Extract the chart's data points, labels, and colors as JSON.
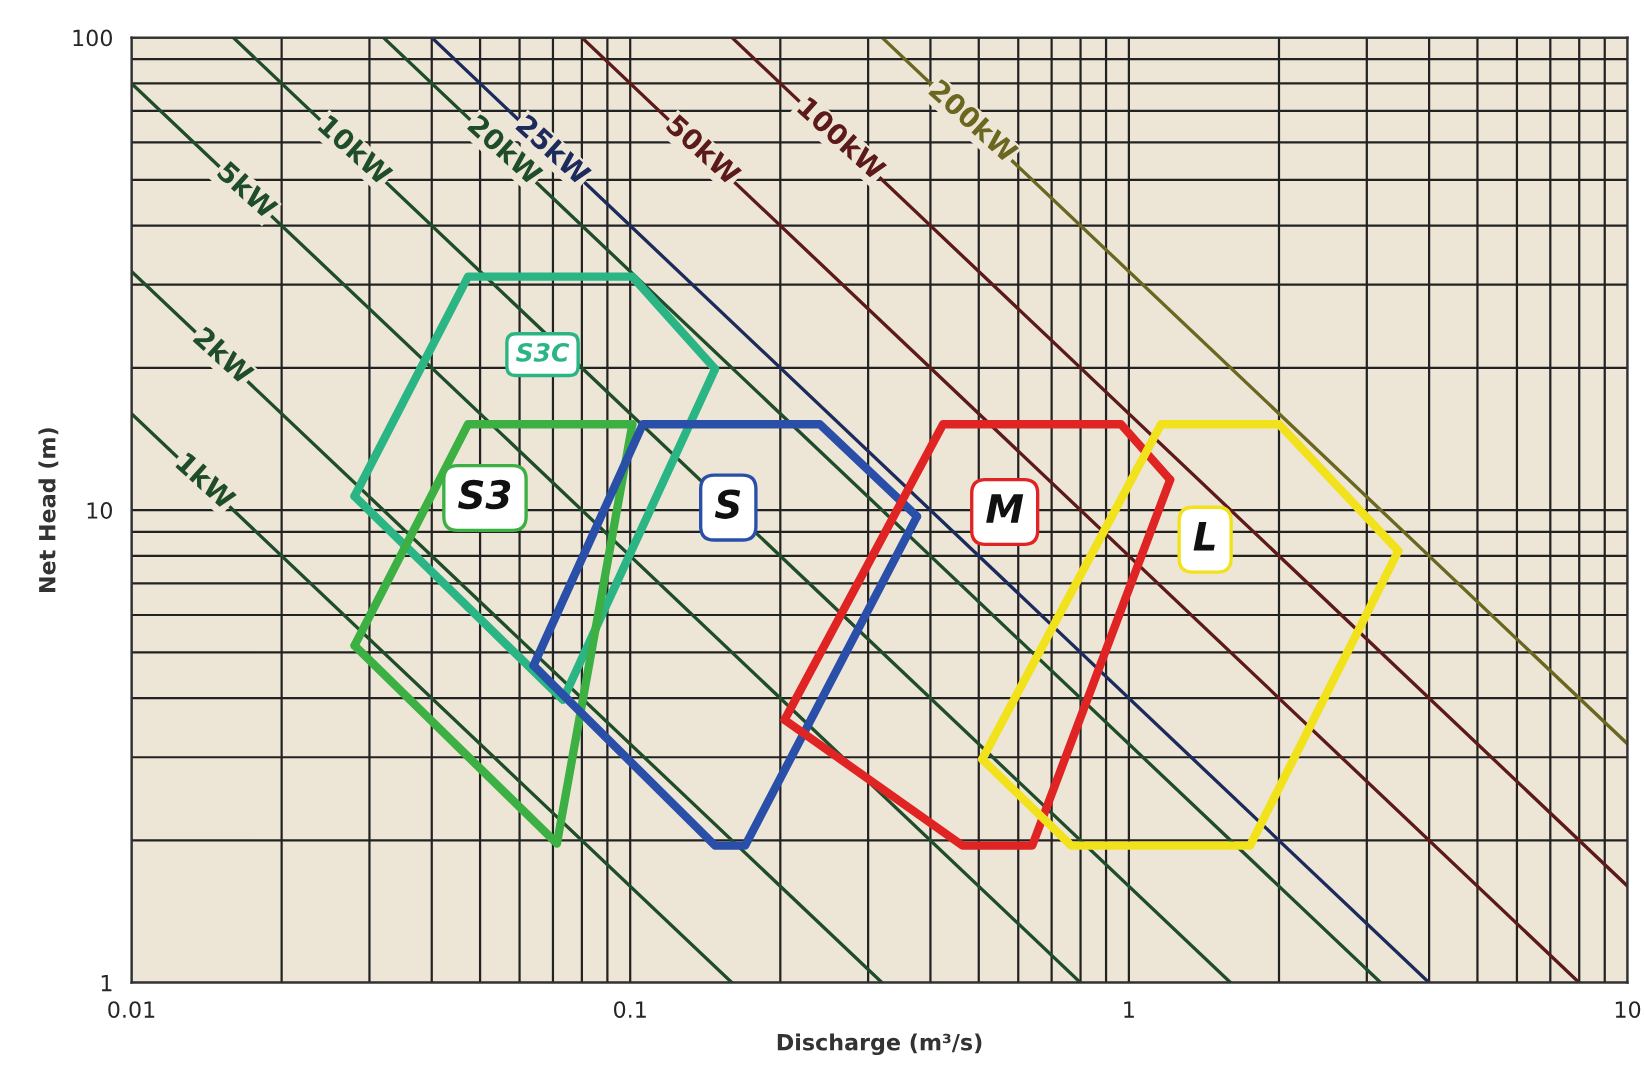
{
  "chart_data": {
    "type": "line",
    "xlabel": "Discharge (m³/s)",
    "ylabel": "Net Head (m)",
    "log": "xy",
    "xlim": [
      0.01,
      10
    ],
    "ylim": [
      1,
      100
    ],
    "xticks": [
      0.01,
      0.1,
      1,
      10
    ],
    "yticks": [
      1,
      10,
      100
    ],
    "grid": true,
    "legend": false,
    "marker": "none",
    "line_style": "solid",
    "series": [
      {
        "name": "1kW",
        "color": "#1f4d2a",
        "x": [
          0.01,
          0.16
        ],
        "values": [
          16,
          1
        ]
      },
      {
        "name": "2kW",
        "color": "#1f4d2a",
        "x": [
          0.01,
          0.32
        ],
        "values": [
          32,
          1
        ]
      },
      {
        "name": "5kW",
        "color": "#1f4d2a",
        "x": [
          0.01,
          0.8
        ],
        "values": [
          80,
          1
        ]
      },
      {
        "name": "10kW",
        "color": "#1f4d2a",
        "x": [
          0.016,
          1.6
        ],
        "values": [
          100,
          1
        ]
      },
      {
        "name": "20kW",
        "color": "#1f4d2a",
        "x": [
          0.032,
          3.2
        ],
        "values": [
          100,
          1
        ]
      },
      {
        "name": "25kW",
        "color": "#1c2a5c",
        "x": [
          0.04,
          4
        ],
        "values": [
          100,
          1
        ]
      },
      {
        "name": "50kW",
        "color": "#5c1a1a",
        "x": [
          0.08,
          8
        ],
        "values": [
          100,
          1
        ]
      },
      {
        "name": "100kW",
        "color": "#5c1a1a",
        "x": [
          0.16,
          10
        ],
        "values": [
          100,
          1.6
        ]
      },
      {
        "name": "200kW",
        "color": "#6b6620",
        "x": [
          0.32,
          10
        ],
        "values": [
          100,
          3.2
        ]
      },
      {
        "name": "S3C",
        "color": "#2bb585",
        "x": [
          0.028,
          0.0473,
          0.101,
          0.148
        ],
        "values": [
          10.7,
          31.2,
          31.2,
          19.9
        ]
      },
      {
        "color": "#2bb585",
        "x": [
          0.028,
          0.0733,
          0.148
        ],
        "values": [
          10.7,
          3.97,
          19.9
        ]
      },
      {
        "name": "S3",
        "color": "#3cb043",
        "x": [
          0.028,
          0.0473,
          0.101
        ],
        "values": [
          5.17,
          15.2,
          15.2
        ]
      },
      {
        "color": "#3cb043",
        "x": [
          0.028,
          0.0713,
          0.101
        ],
        "values": [
          5.17,
          1.97,
          15.2
        ]
      },
      {
        "name": "S",
        "color": "#2a4fa8",
        "x": [
          0.064,
          0.106,
          0.24,
          0.376
        ],
        "values": [
          4.69,
          15.2,
          15.2,
          9.7
        ]
      },
      {
        "color": "#2a4fa8",
        "x": [
          0.064,
          0.148,
          0.17,
          0.376
        ],
        "values": [
          4.69,
          1.95,
          1.95,
          9.7
        ]
      },
      {
        "name": "M",
        "color": "#e02424",
        "x": [
          0.204,
          0.424,
          0.964,
          1.21
        ],
        "values": [
          3.6,
          15.2,
          15.2,
          11.6
        ]
      },
      {
        "color": "#e02424",
        "x": [
          0.204,
          0.464,
          0.64,
          1.21
        ],
        "values": [
          3.6,
          1.95,
          1.95,
          11.6
        ]
      },
      {
        "name": "L",
        "color": "#f2e21c",
        "x": [
          0.508,
          1.16,
          2.0,
          3.47
        ],
        "values": [
          2.97,
          15.2,
          15.2,
          8.2
        ]
      },
      {
        "color": "#f2e21c",
        "x": [
          0.508,
          0.767,
          1.75,
          3.47
        ],
        "values": [
          2.97,
          1.95,
          1.95,
          8.2
        ]
      }
    ]
  }
}
